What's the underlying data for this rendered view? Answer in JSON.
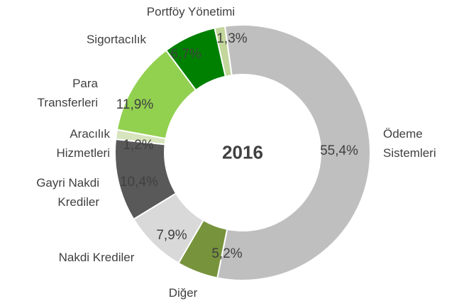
{
  "chart_data": {
    "type": "donut",
    "center_label": "2016",
    "categories": [
      "Ödeme\nSistemleri",
      "Diğer",
      "Nakdi Krediler",
      "Gayri Nakdi\nKrediler",
      "Aracılık\nHizmetleri",
      "Para\nTransferleri",
      "Sigortacılık",
      "Portföy Yönetimi"
    ],
    "values": [
      55.4,
      5.2,
      7.9,
      10.4,
      1.2,
      11.9,
      6.7,
      1.3
    ],
    "value_labels": [
      "55,4%",
      "5,2%",
      "7,9%",
      "10,4%",
      "1,2%",
      "11,9%",
      "6,7%",
      "1,3%"
    ],
    "colors": [
      "#bfbfbf",
      "#77933c",
      "#d9d9d9",
      "#595959",
      "#d7e4bd",
      "#92d050",
      "#008000",
      "#c3d69b"
    ]
  }
}
